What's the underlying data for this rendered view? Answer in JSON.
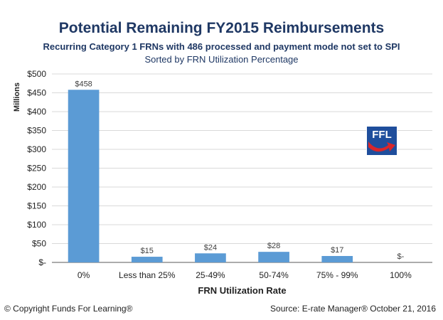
{
  "header": {
    "title": "Potential Remaining FY2015 Reimbursements",
    "subtitle": "Recurring Category 1 FRNs with 486 processed and payment mode not set to SPI",
    "subtitle2": "Sorted by FRN Utilization Percentage"
  },
  "footer": {
    "copyright": "© Copyright Funds For Learning®",
    "source": "Source: E-rate Manager® October 21, 2016"
  },
  "logo": {
    "text": "FFL",
    "icon": "ffl-logo-icon"
  },
  "colors": {
    "bar": "#5b9bd5",
    "title": "#1f3864",
    "grid": "#d9d9d9",
    "axis": "#595959"
  },
  "chart_data": {
    "type": "bar",
    "title": "Potential Remaining FY2015 Reimbursements",
    "xlabel": "FRN Utilization Rate",
    "ylabel": "Millions",
    "categories": [
      "0%",
      "Less than 25%",
      "25-49%",
      "50-74%",
      "75% - 99%",
      "100%"
    ],
    "values": [
      458,
      15,
      24,
      28,
      17,
      0
    ],
    "data_labels": [
      "$458",
      "$15",
      "$24",
      "$28",
      "$17",
      "$-"
    ],
    "ylim": [
      0,
      500
    ],
    "yticks": [
      0,
      50,
      100,
      150,
      200,
      250,
      300,
      350,
      400,
      450,
      500
    ],
    "ytick_labels": [
      "$-",
      "$50",
      "$100",
      "$150",
      "$200",
      "$250",
      "$300",
      "$350",
      "$400",
      "$450",
      "$500"
    ],
    "grid": true,
    "legend": "none"
  }
}
